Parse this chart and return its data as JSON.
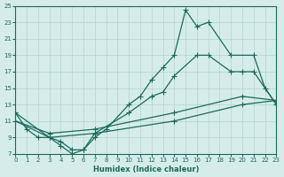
{
  "xlabel": "Humidex (Indice chaleur)",
  "bg_color": "#d6ecea",
  "grid_color": "#b0d4cf",
  "line_color": "#1a6b5a",
  "xlim": [
    0,
    23
  ],
  "ylim": [
    7,
    25
  ],
  "xticks": [
    0,
    1,
    2,
    3,
    4,
    5,
    6,
    7,
    8,
    9,
    10,
    11,
    12,
    13,
    14,
    15,
    16,
    17,
    18,
    19,
    20,
    21,
    22,
    23
  ],
  "yticks": [
    7,
    9,
    11,
    13,
    15,
    17,
    19,
    21,
    23,
    25
  ],
  "line1_x": [
    0,
    1,
    2,
    3,
    4,
    5,
    6,
    7,
    8,
    10,
    11,
    12,
    13,
    14,
    15,
    16,
    17,
    19,
    21,
    22,
    23
  ],
  "line1_y": [
    12,
    10,
    9,
    9,
    8,
    7,
    7.5,
    9,
    10,
    13,
    14,
    16,
    17.5,
    19,
    24.5,
    22.5,
    23,
    19,
    19,
    15,
    13
  ],
  "line2_x": [
    0,
    3,
    4,
    5,
    6,
    7,
    10,
    12,
    13,
    14,
    16,
    17,
    19,
    20,
    21,
    23
  ],
  "line2_y": [
    12,
    9,
    8.5,
    7.5,
    7.5,
    9.5,
    12,
    14,
    14.5,
    16.5,
    19,
    19,
    17,
    17,
    17,
    13
  ],
  "line3_x": [
    0,
    3,
    7,
    14,
    20,
    23
  ],
  "line3_y": [
    11,
    9.5,
    10,
    12,
    14,
    13.5
  ],
  "line4_x": [
    0,
    3,
    7,
    14,
    20,
    23
  ],
  "line4_y": [
    11,
    9,
    9.5,
    11,
    13,
    13.5
  ]
}
